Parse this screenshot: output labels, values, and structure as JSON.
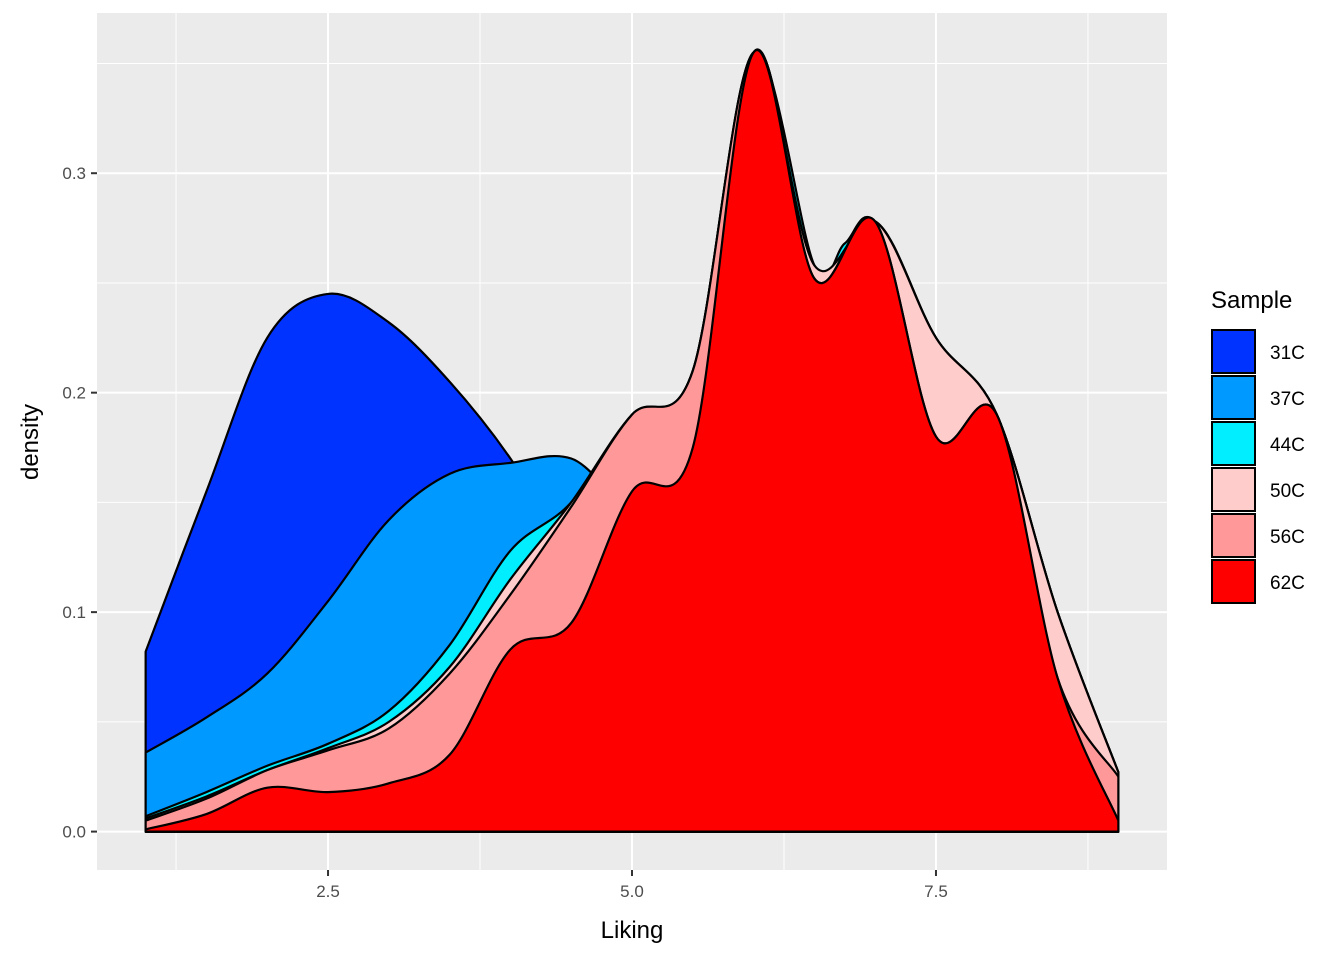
{
  "chart_data": {
    "type": "area",
    "xlabel": "Liking",
    "ylabel": "density",
    "xlim": [
      0.6,
      9.4
    ],
    "ylim": [
      -0.0175,
      0.373
    ],
    "x_ticks": [
      2.5,
      5.0,
      7.5
    ],
    "x_tick_labels": [
      "2.5",
      "5.0",
      "7.5"
    ],
    "y_ticks": [
      0.0,
      0.1,
      0.2,
      0.3
    ],
    "y_tick_labels": [
      "0.0",
      "0.1",
      "0.2",
      "0.3"
    ],
    "grid": true,
    "panel_background": "#ebebeb",
    "legend": {
      "title": "Sample",
      "position": "right"
    },
    "stacking": "cumulative",
    "curves": [
      {
        "name": "31C",
        "color": "#0033ff",
        "points": [
          [
            1.0,
            0.082
          ],
          [
            1.5,
            0.155
          ],
          [
            2.0,
            0.225
          ],
          [
            2.5,
            0.245
          ],
          [
            3.0,
            0.232
          ],
          [
            3.5,
            0.205
          ],
          [
            4.0,
            0.17
          ],
          [
            4.5,
            0.125
          ],
          [
            5.0,
            0.1
          ],
          [
            5.5,
            0.17
          ],
          [
            6.0,
            0.355
          ],
          [
            6.5,
            0.255
          ],
          [
            7.0,
            0.278
          ],
          [
            7.5,
            0.225
          ],
          [
            8.0,
            0.19
          ],
          [
            8.5,
            0.1
          ],
          [
            9.0,
            0.027
          ]
        ]
      },
      {
        "name": "37C",
        "color": "#0099ff",
        "points": [
          [
            1.0,
            0.036
          ],
          [
            1.5,
            0.052
          ],
          [
            2.0,
            0.072
          ],
          [
            2.5,
            0.105
          ],
          [
            3.0,
            0.142
          ],
          [
            3.5,
            0.163
          ],
          [
            4.0,
            0.168
          ],
          [
            4.5,
            0.17
          ],
          [
            5.0,
            0.15
          ],
          [
            5.5,
            0.17
          ],
          [
            6.0,
            0.355
          ],
          [
            6.5,
            0.255
          ],
          [
            7.0,
            0.278
          ],
          [
            7.5,
            0.225
          ],
          [
            8.0,
            0.19
          ],
          [
            8.5,
            0.1
          ],
          [
            9.0,
            0.027
          ]
        ]
      },
      {
        "name": "44C",
        "color": "#00eeff",
        "points": [
          [
            1.0,
            0.007
          ],
          [
            1.5,
            0.018
          ],
          [
            2.0,
            0.03
          ],
          [
            2.5,
            0.04
          ],
          [
            3.0,
            0.055
          ],
          [
            3.5,
            0.085
          ],
          [
            4.0,
            0.128
          ],
          [
            4.5,
            0.15
          ],
          [
            5.0,
            0.19
          ],
          [
            5.5,
            0.21
          ],
          [
            6.0,
            0.355
          ],
          [
            6.5,
            0.258
          ],
          [
            6.75,
            0.268
          ],
          [
            7.0,
            0.278
          ],
          [
            7.5,
            0.225
          ],
          [
            8.0,
            0.19
          ],
          [
            8.5,
            0.1
          ],
          [
            9.0,
            0.027
          ]
        ]
      },
      {
        "name": "50C",
        "color": "#ffcccc",
        "points": [
          [
            1.0,
            0.006
          ],
          [
            1.5,
            0.016
          ],
          [
            2.0,
            0.028
          ],
          [
            2.5,
            0.038
          ],
          [
            3.0,
            0.05
          ],
          [
            3.5,
            0.075
          ],
          [
            4.0,
            0.115
          ],
          [
            4.5,
            0.15
          ],
          [
            5.0,
            0.19
          ],
          [
            5.5,
            0.21
          ],
          [
            6.0,
            0.355
          ],
          [
            6.5,
            0.258
          ],
          [
            7.0,
            0.278
          ],
          [
            7.5,
            0.225
          ],
          [
            8.0,
            0.19
          ],
          [
            8.5,
            0.1
          ],
          [
            9.0,
            0.027
          ]
        ]
      },
      {
        "name": "56C",
        "color": "#ff9999",
        "points": [
          [
            1.0,
            0.005
          ],
          [
            1.5,
            0.015
          ],
          [
            2.0,
            0.028
          ],
          [
            2.5,
            0.037
          ],
          [
            3.0,
            0.047
          ],
          [
            3.5,
            0.072
          ],
          [
            4.0,
            0.108
          ],
          [
            4.5,
            0.148
          ],
          [
            5.0,
            0.19
          ],
          [
            5.5,
            0.21
          ],
          [
            6.0,
            0.355
          ],
          [
            6.5,
            0.252
          ],
          [
            7.0,
            0.278
          ],
          [
            7.5,
            0.18
          ],
          [
            8.0,
            0.19
          ],
          [
            8.5,
            0.07
          ],
          [
            9.0,
            0.025
          ]
        ]
      },
      {
        "name": "62C",
        "color": "#ff0000",
        "points": [
          [
            1.0,
            0.001
          ],
          [
            1.5,
            0.008
          ],
          [
            2.0,
            0.02
          ],
          [
            2.5,
            0.018
          ],
          [
            3.0,
            0.022
          ],
          [
            3.5,
            0.035
          ],
          [
            4.0,
            0.083
          ],
          [
            4.5,
            0.095
          ],
          [
            5.0,
            0.155
          ],
          [
            5.5,
            0.175
          ],
          [
            6.0,
            0.355
          ],
          [
            6.5,
            0.252
          ],
          [
            7.0,
            0.278
          ],
          [
            7.5,
            0.18
          ],
          [
            8.0,
            0.19
          ],
          [
            8.5,
            0.07
          ],
          [
            9.0,
            0.005
          ]
        ]
      }
    ]
  }
}
